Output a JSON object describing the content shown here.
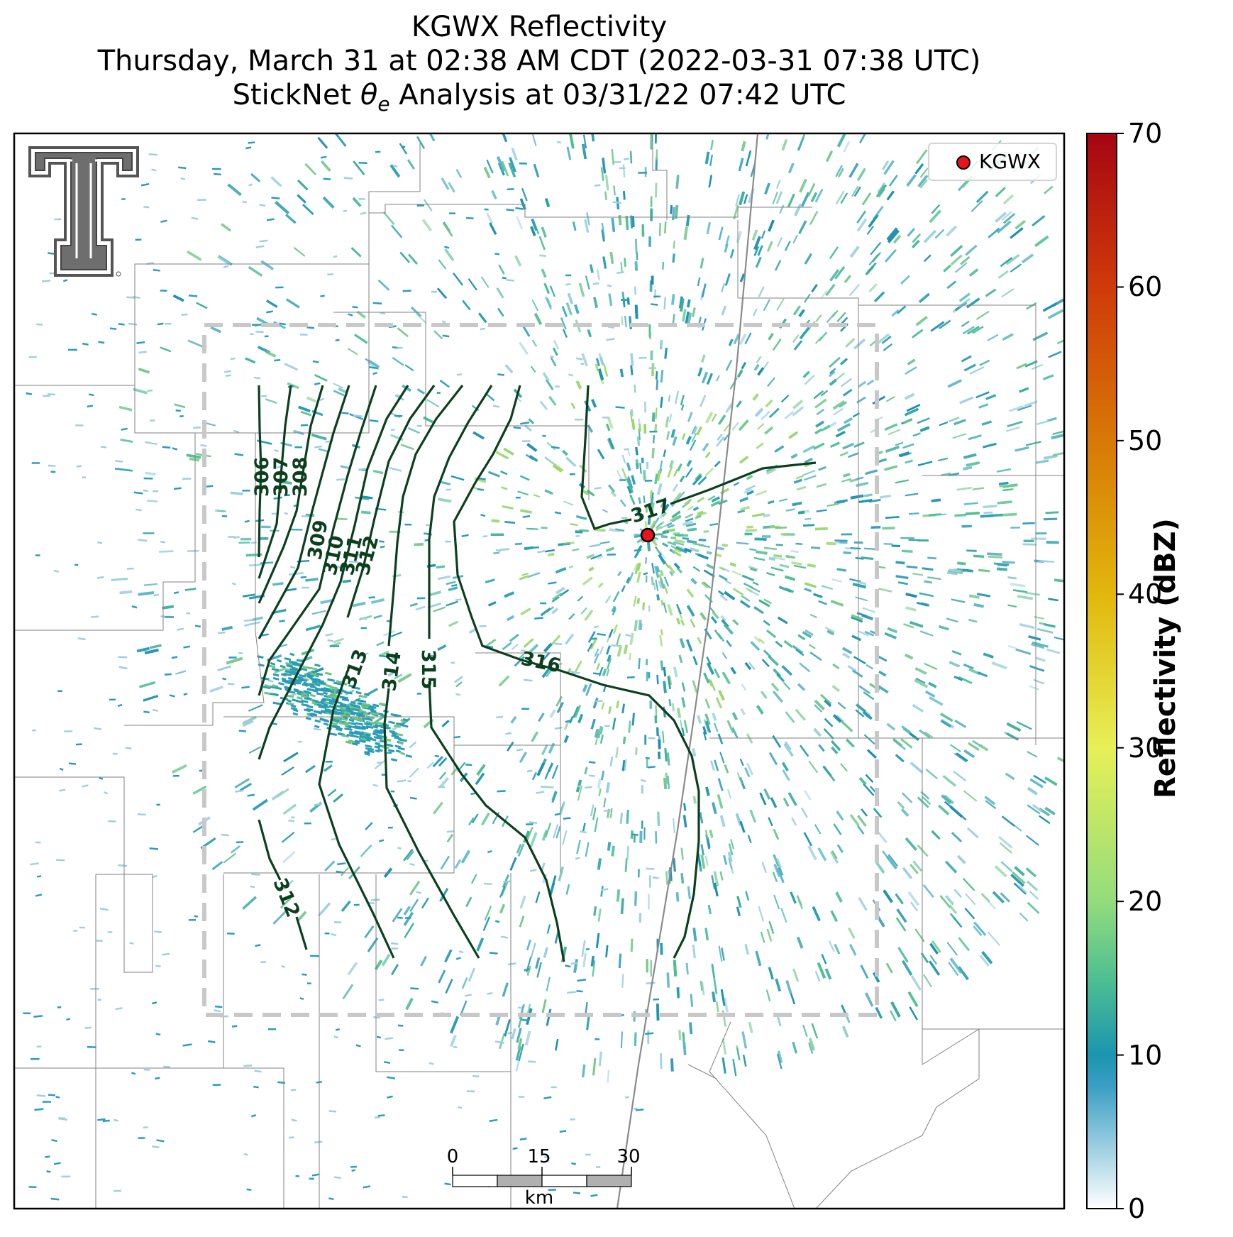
{
  "title": {
    "line1": "KGWX Reflectivity",
    "line2": "Thursday, March 31 at 02:38 AM CDT (2022-03-31 07:38 UTC)",
    "line3_pre": "StickNet ",
    "line3_sym": "θ",
    "line3_sub": "e",
    "line3_post": " Analysis at 03/31/22 07:42 UTC"
  },
  "legend": {
    "label": "KGWX",
    "marker_color": "#e8141c"
  },
  "colorbar": {
    "label": "Reflectivity (dBZ)",
    "min": 0,
    "max": 70,
    "ticks": [
      "0",
      "10",
      "20",
      "30",
      "40",
      "50",
      "60",
      "70"
    ],
    "stops": [
      {
        "value": 0,
        "color": "#ffffff"
      },
      {
        "value": 8,
        "color": "#3a9ec4"
      },
      {
        "value": 10,
        "color": "#1b95ae"
      },
      {
        "value": 15,
        "color": "#4fbf92"
      },
      {
        "value": 20,
        "color": "#93dc7c"
      },
      {
        "value": 30,
        "color": "#e7f056"
      },
      {
        "value": 40,
        "color": "#e1b70c"
      },
      {
        "value": 50,
        "color": "#d87806"
      },
      {
        "value": 60,
        "color": "#cf3a0a"
      },
      {
        "value": 70,
        "color": "#a70512"
      }
    ]
  },
  "scale_bar": {
    "labels": [
      "0",
      "15",
      "30"
    ],
    "unit": "km"
  },
  "contours": [
    {
      "label": "306"
    },
    {
      "label": "307"
    },
    {
      "label": "308"
    },
    {
      "label": "309"
    },
    {
      "label": "310"
    },
    {
      "label": "311"
    },
    {
      "label": "312"
    },
    {
      "label": "313"
    },
    {
      "label": "314"
    },
    {
      "label": "315"
    },
    {
      "label": "316"
    },
    {
      "label": "317"
    },
    {
      "label": "312"
    }
  ],
  "colors": {
    "contour": "#0b3f1e",
    "analysis_box": "#c8c8c8",
    "boundaries": "#7a7a7a",
    "radar_site": "#e8141c"
  },
  "logo": {
    "text": "T",
    "description_icon": "texas-tech-logo-icon"
  }
}
